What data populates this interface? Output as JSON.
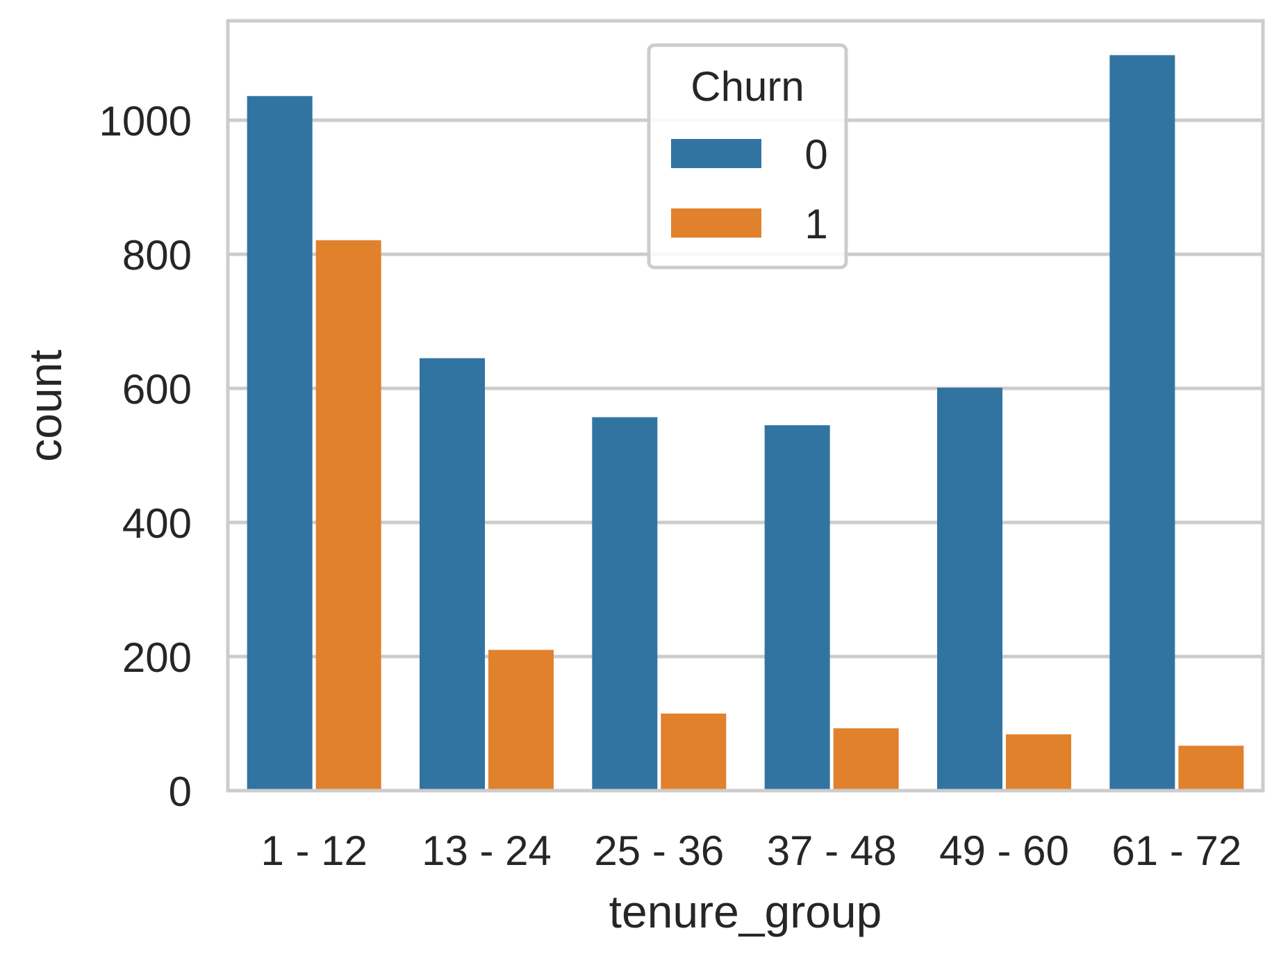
{
  "chart_data": {
    "type": "bar",
    "title": "",
    "xlabel": "tenure_group",
    "ylabel": "count",
    "categories": [
      "1 - 12",
      "13 - 24",
      "25 - 36",
      "37 - 48",
      "49 - 60",
      "61 - 72"
    ],
    "series": [
      {
        "name": "0",
        "color": "#3274a1",
        "values": [
          1036,
          645,
          557,
          545,
          601,
          1097
        ]
      },
      {
        "name": "1",
        "color": "#e1812c",
        "values": [
          821,
          210,
          115,
          93,
          84,
          67
        ]
      }
    ],
    "ylim": [
      0,
      1150
    ],
    "yticks": [
      0,
      200,
      400,
      600,
      800,
      1000
    ],
    "grid": true,
    "legend": {
      "title": "Churn",
      "placement": "upper-center"
    }
  }
}
